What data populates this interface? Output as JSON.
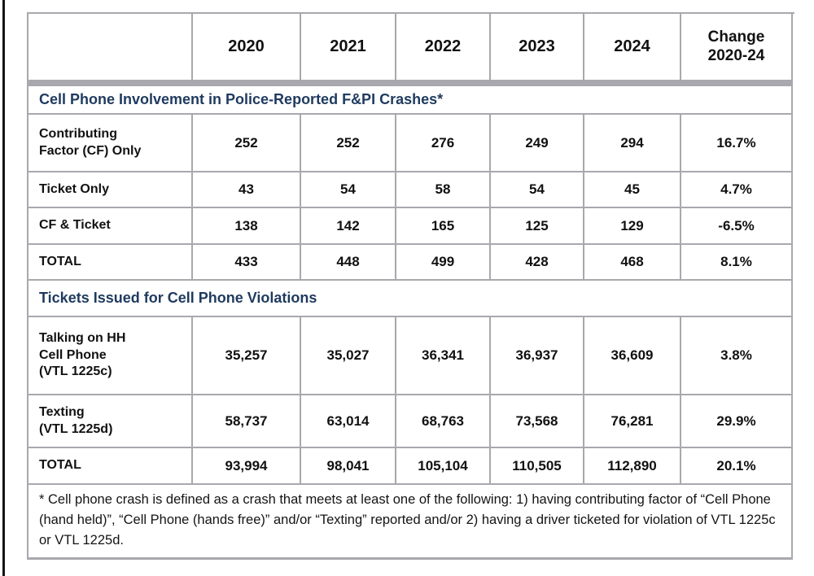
{
  "header": {
    "corner": "",
    "years": [
      "2020",
      "2021",
      "2022",
      "2023",
      "2024"
    ],
    "change_label": "Change\n2020-24"
  },
  "sections": [
    {
      "title": "Cell Phone Involvement in Police-Reported F&PI Crashes*",
      "rows": [
        {
          "label": "Contributing\nFactor (CF) Only",
          "values": [
            "252",
            "252",
            "276",
            "249",
            "294",
            "16.7%"
          ]
        },
        {
          "label": "Ticket Only",
          "values": [
            "43",
            "54",
            "58",
            "54",
            "45",
            "4.7%"
          ]
        },
        {
          "label": "CF & Ticket",
          "values": [
            "138",
            "142",
            "165",
            "125",
            "129",
            "-6.5%"
          ]
        },
        {
          "label": "TOTAL",
          "values": [
            "433",
            "448",
            "499",
            "428",
            "468",
            "8.1%"
          ]
        }
      ]
    },
    {
      "title": "Tickets Issued for Cell Phone Violations",
      "rows": [
        {
          "label": "Talking on HH\nCell Phone\n(VTL 1225c)",
          "values": [
            "35,257",
            "35,027",
            "36,341",
            "36,937",
            "36,609",
            "3.8%"
          ]
        },
        {
          "label": "Texting\n(VTL 1225d)",
          "values": [
            "58,737",
            "63,014",
            "68,763",
            "73,568",
            "76,281",
            "29.9%"
          ]
        },
        {
          "label": "TOTAL",
          "values": [
            "93,994",
            "98,041",
            "105,104",
            "110,505",
            "112,890",
            "20.1%"
          ]
        }
      ]
    }
  ],
  "footnote": "* Cell phone crash is defined as a crash that meets at least one of the following: 1) having contributing factor of “Cell Phone (hand held)”, “Cell Phone (hands free)” and/or “Texting” reported and/or 2) having a driver ticketed for violation of VTL 1225c or VTL 1225d.",
  "colors": {
    "section_navy": "#1f3a5f",
    "border_gray": "#a8a8ae",
    "page_edge_black": "#151515"
  }
}
